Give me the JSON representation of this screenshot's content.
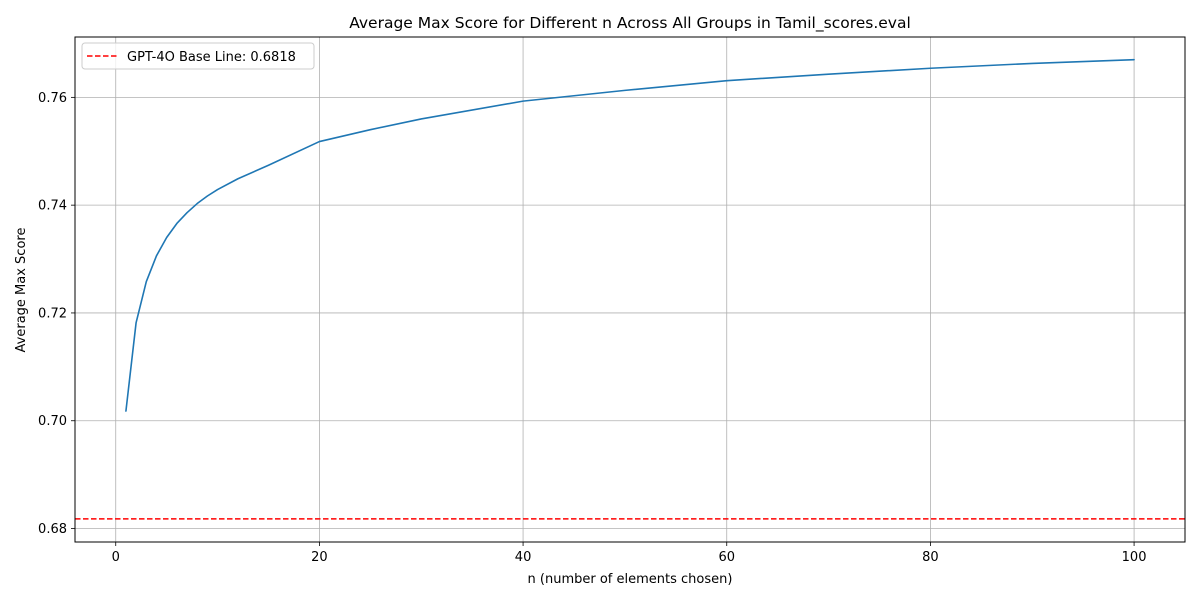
{
  "chart_data": {
    "type": "line",
    "title": "Average Max Score for Different n Across All Groups in Tamil_scores.eval",
    "xlabel": "n (number of elements chosen)",
    "ylabel": "Average Max Score",
    "xlim": [
      -4.0,
      105.0
    ],
    "ylim": [
      0.6775,
      0.7712
    ],
    "xticks": [
      0,
      20,
      40,
      60,
      80,
      100
    ],
    "xtick_labels": [
      "0",
      "20",
      "40",
      "60",
      "80",
      "100"
    ],
    "yticks": [
      0.68,
      0.7,
      0.72,
      0.74,
      0.76
    ],
    "ytick_labels": [
      "0.68",
      "0.70",
      "0.72",
      "0.74",
      "0.76"
    ],
    "grid": true,
    "legend_position": "top-left",
    "series": [
      {
        "color": "#1f77b4",
        "style": "solid",
        "x": [
          1,
          2,
          3,
          4,
          5,
          6,
          7,
          8,
          9,
          10,
          12,
          15,
          20,
          25,
          30,
          40,
          50,
          60,
          70,
          80,
          90,
          100
        ],
        "y": [
          0.7018,
          0.7182,
          0.7258,
          0.7306,
          0.734,
          0.7366,
          0.7386,
          0.7403,
          0.7417,
          0.7429,
          0.7449,
          0.7474,
          0.7518,
          0.754,
          0.756,
          0.7593,
          0.7613,
          0.7631,
          0.7643,
          0.7654,
          0.7663,
          0.767
        ]
      }
    ],
    "baseline": {
      "name": "GPT-4O Base Line: 0.6818",
      "value": 0.6818,
      "color": "#ff0000",
      "style": "dashed"
    }
  }
}
